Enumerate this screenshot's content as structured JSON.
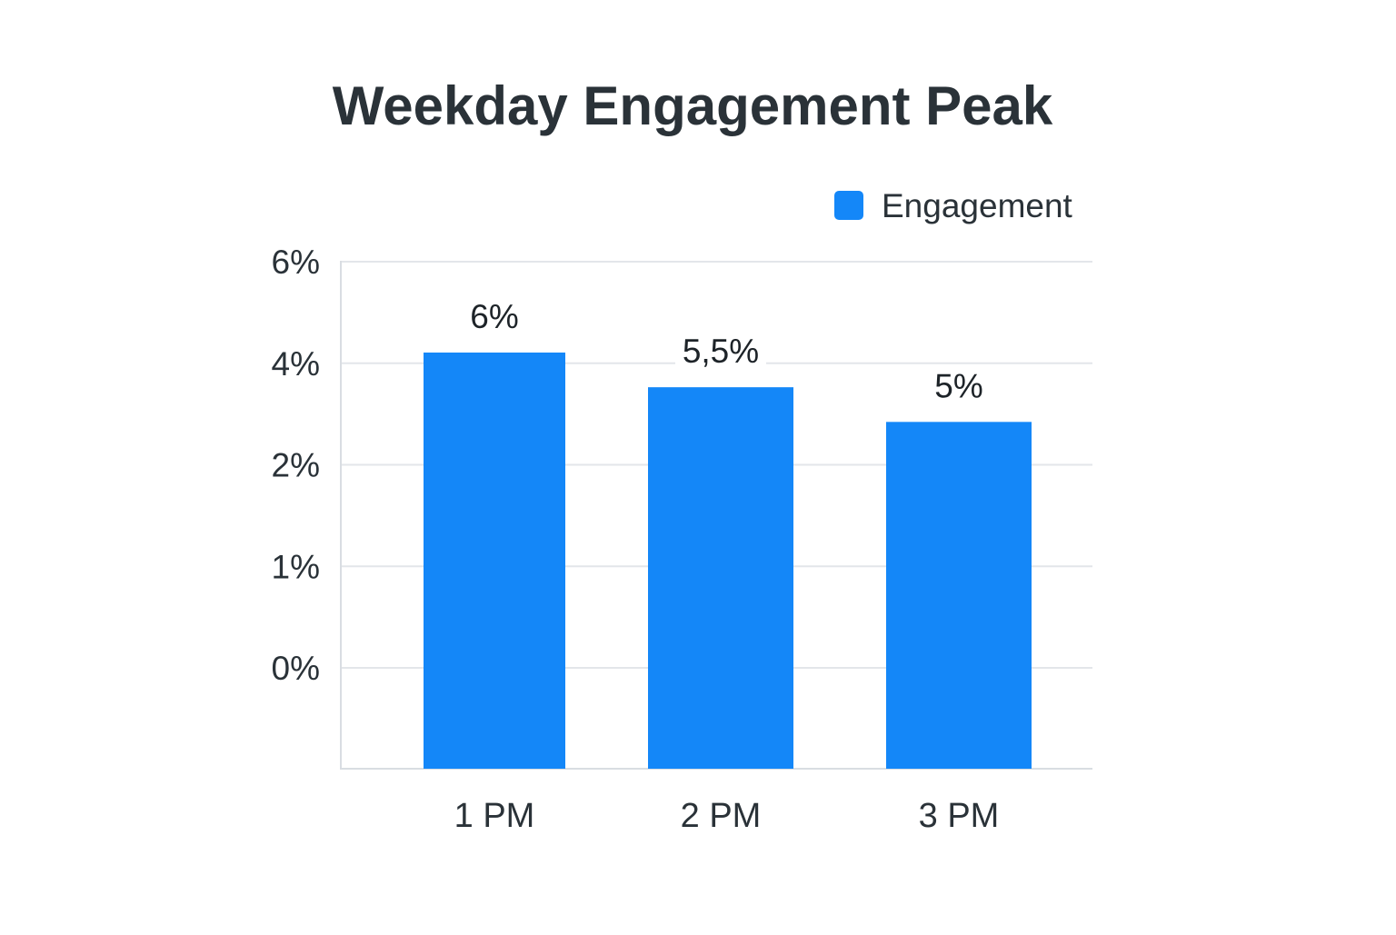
{
  "chart_data": {
    "type": "bar",
    "title": "Weekday Engagement Peak",
    "xlabel": "",
    "ylabel": "",
    "categories": [
      "1 PM",
      "2 PM",
      "3 PM"
    ],
    "series": [
      {
        "name": "Engagement",
        "values": [
          6,
          5.5,
          5
        ],
        "color": "#1487f8"
      }
    ],
    "data_labels": [
      "6%",
      "5,5%",
      "5%"
    ],
    "y_tick_labels": [
      "6%",
      "4%",
      "2%",
      "1%",
      "0%"
    ],
    "grid": true,
    "legend": "top-right"
  }
}
